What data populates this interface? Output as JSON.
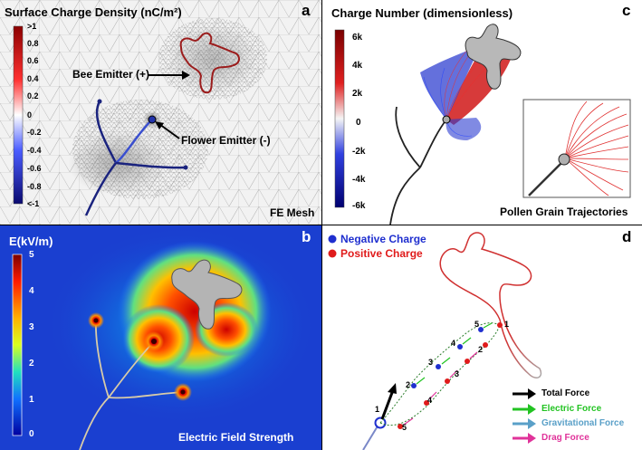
{
  "panel_a": {
    "letter": "a",
    "title": "Surface Charge Density (nC/m²)",
    "colorbar_ticks": [
      ">1",
      "0.8",
      "0.6",
      "0.4",
      "0.2",
      "0",
      "-0.2",
      "-0.4",
      "-0.6",
      "-0.8",
      "<-1"
    ],
    "label_bee": "Bee Emitter (+)",
    "label_flower": "Flower Emitter (-)",
    "label_mesh": "FE Mesh"
  },
  "panel_b": {
    "letter": "b",
    "title": "E(kV/m)",
    "colorbar_ticks": [
      "5",
      "4",
      "3",
      "2",
      "1",
      "0"
    ],
    "label_field": "Electric Field Strength"
  },
  "panel_c": {
    "letter": "c",
    "title": "Charge Number (dimensionless)",
    "colorbar_ticks": [
      "6k",
      "4k",
      "2k",
      "0",
      "-2k",
      "-4k",
      "-6k"
    ],
    "label_traj": "Pollen Grain Trajectories"
  },
  "panel_d": {
    "letter": "d",
    "legend_negative": "Negative Charge",
    "legend_positive": "Positive Charge",
    "legend_total": "Total Force",
    "legend_electric": "Electric Force",
    "legend_gravitational": "Gravitational Force",
    "legend_drag": "Drag Force",
    "path_upper_numbers": [
      "1",
      "2",
      "3",
      "4",
      "5"
    ],
    "path_lower_numbers": [
      "1",
      "2",
      "3",
      "4",
      "5"
    ]
  },
  "colors": {
    "negative": "#1f2fcf",
    "positive": "#e01b1b",
    "total_force": "#000000",
    "electric_force": "#22c322",
    "gravitational_force": "#5aa0c8",
    "drag_force": "#e0339a"
  }
}
